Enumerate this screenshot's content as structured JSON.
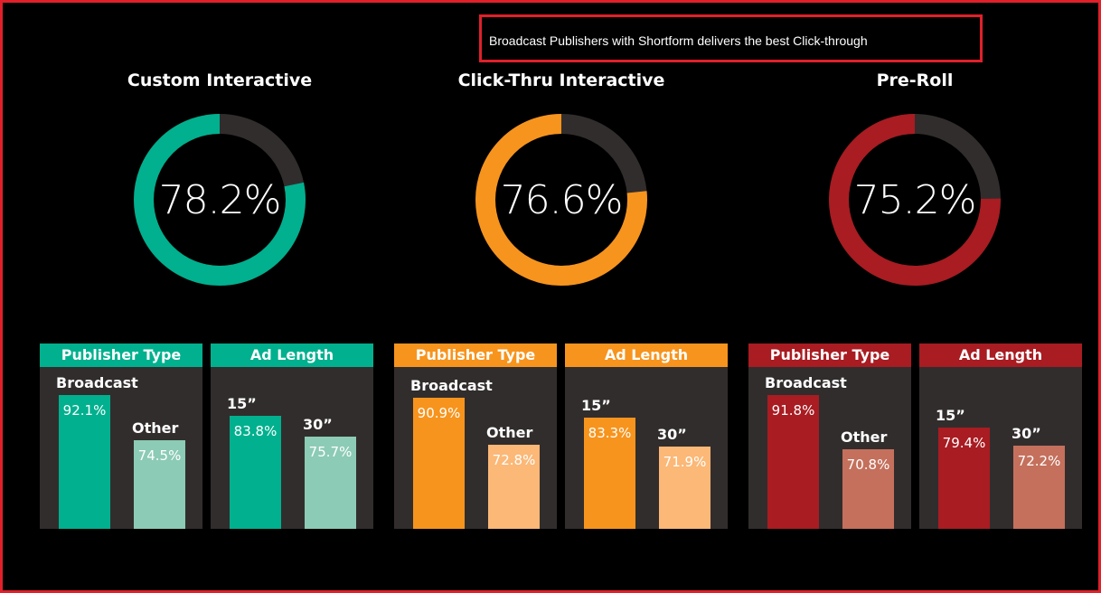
{
  "callout": "Broadcast Publishers with Shortform delivers the best Click-through",
  "chart_data": [
    {
      "type": "pie",
      "title": "Custom Interactive",
      "value": 78.2,
      "value_label": "78.2%",
      "color": "#00b08e",
      "remainder_color": "#322d2d",
      "panels": [
        {
          "type": "bar",
          "header": "Publisher Type",
          "categories": [
            "Broadcast",
            "Other"
          ],
          "values": [
            92.1,
            74.5
          ],
          "value_labels": [
            "92.1%",
            "74.5%"
          ],
          "colors": [
            "#00b08e",
            "#8ccbb5"
          ]
        },
        {
          "type": "bar",
          "header": "Ad Length",
          "categories": [
            "15”",
            "30”"
          ],
          "values": [
            83.8,
            75.7
          ],
          "value_labels": [
            "83.8%",
            "75.7%"
          ],
          "colors": [
            "#00b08e",
            "#8ccbb5"
          ]
        }
      ]
    },
    {
      "type": "pie",
      "title": "Click-Thru Interactive",
      "value": 76.6,
      "value_label": "76.6%",
      "color": "#f7941d",
      "remainder_color": "#322d2d",
      "panels": [
        {
          "type": "bar",
          "header": "Publisher Type",
          "categories": [
            "Broadcast",
            "Other"
          ],
          "values": [
            90.9,
            72.8
          ],
          "value_labels": [
            "90.9%",
            "72.8%"
          ],
          "colors": [
            "#f7941d",
            "#fbb877"
          ]
        },
        {
          "type": "bar",
          "header": "Ad Length",
          "categories": [
            "15”",
            "30”"
          ],
          "values": [
            83.3,
            71.9
          ],
          "value_labels": [
            "83.3%",
            "71.9%"
          ],
          "colors": [
            "#f7941d",
            "#fbb877"
          ]
        }
      ]
    },
    {
      "type": "pie",
      "title": "Pre-Roll",
      "value": 75.2,
      "value_label": "75.2%",
      "color": "#a81c22",
      "remainder_color": "#322d2d",
      "panels": [
        {
          "type": "bar",
          "header": "Publisher Type",
          "categories": [
            "Broadcast",
            "Other"
          ],
          "values": [
            91.8,
            70.8
          ],
          "value_labels": [
            "91.8%",
            "70.8%"
          ],
          "colors": [
            "#a81c22",
            "#c4705c"
          ]
        },
        {
          "type": "bar",
          "header": "Ad Length",
          "categories": [
            "15”",
            "30”"
          ],
          "values": [
            79.4,
            72.2
          ],
          "value_labels": [
            "79.4%",
            "72.2%"
          ],
          "colors": [
            "#a81c22",
            "#c4705c"
          ]
        }
      ]
    }
  ]
}
